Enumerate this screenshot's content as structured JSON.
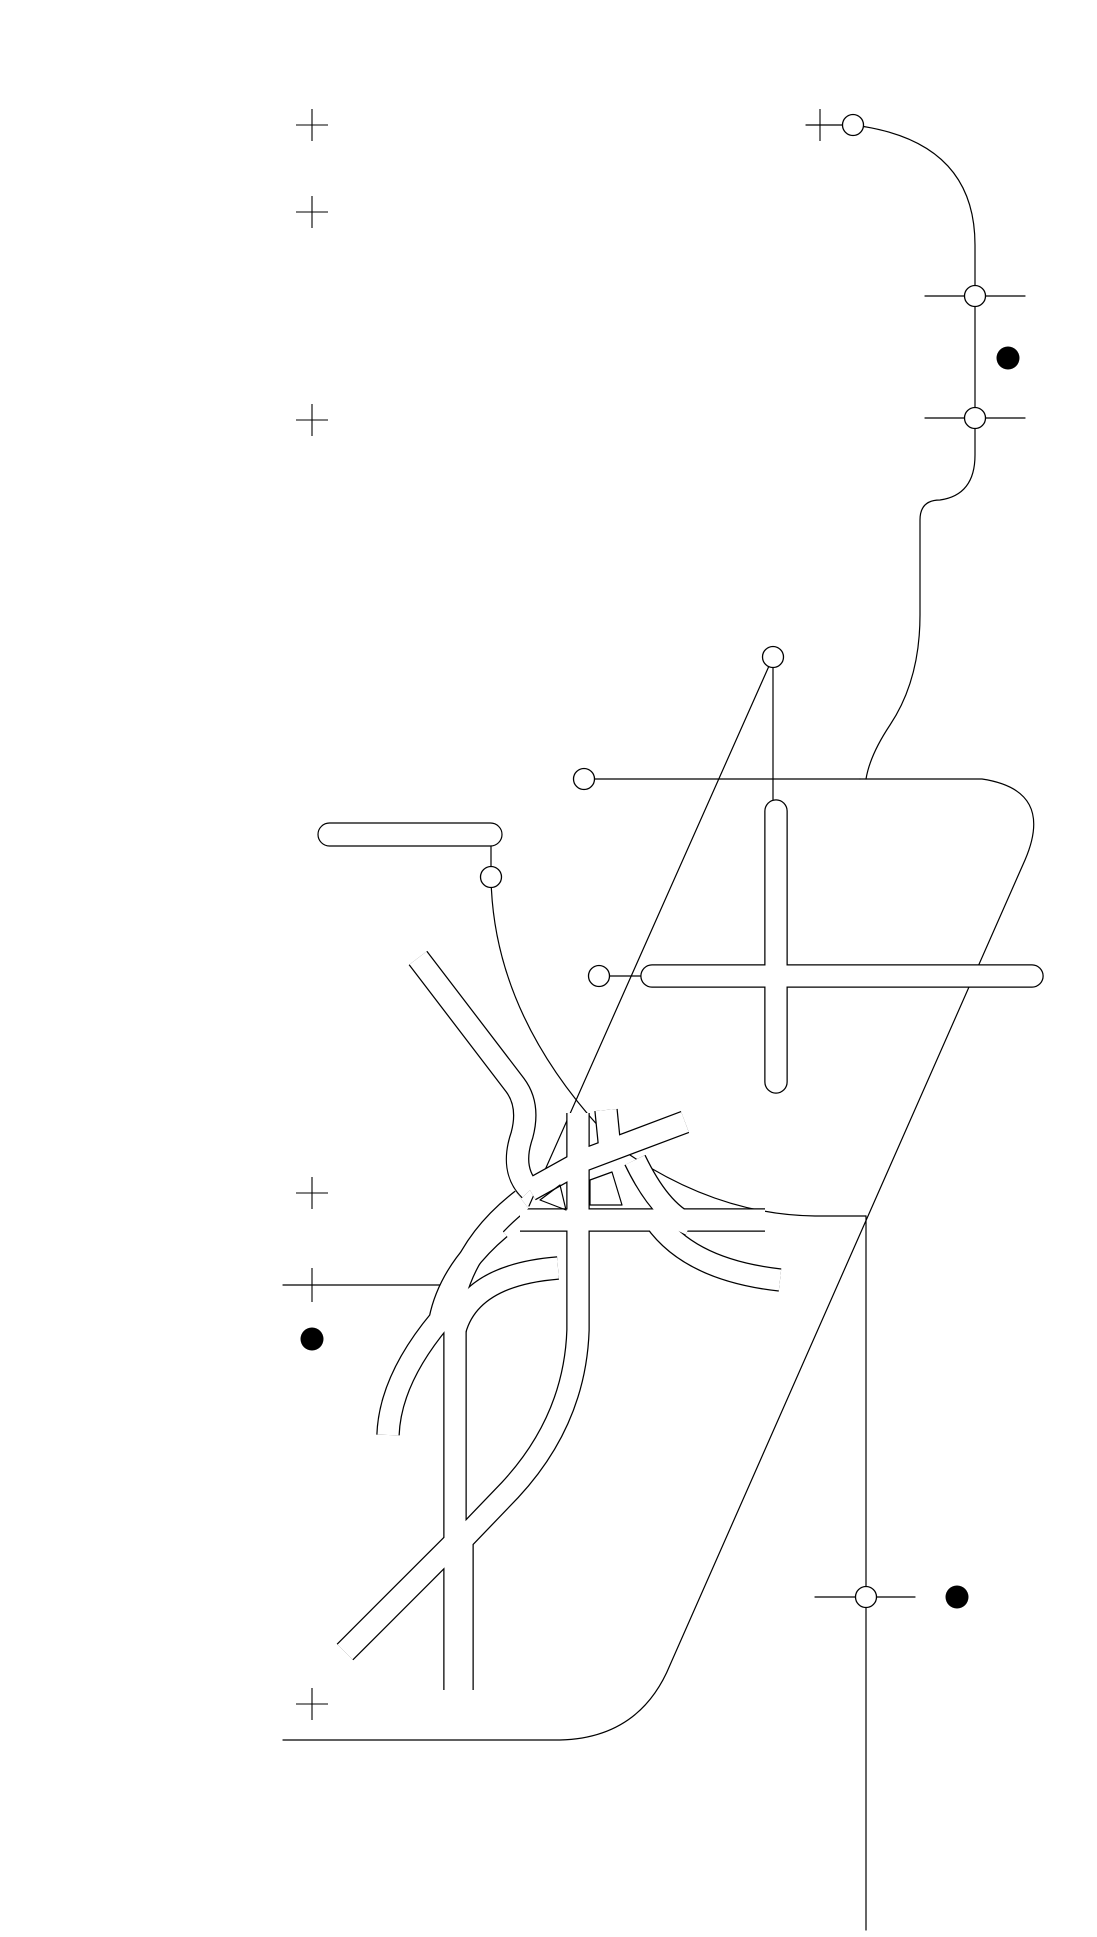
{
  "map": {
    "style": "monochrome line schematic",
    "background_color": "#ffffff",
    "line_color": "#000000",
    "marker_fill_color": "#ffffff",
    "dot_color": "#000000",
    "labels": []
  },
  "legend": {
    "visible": false
  }
}
